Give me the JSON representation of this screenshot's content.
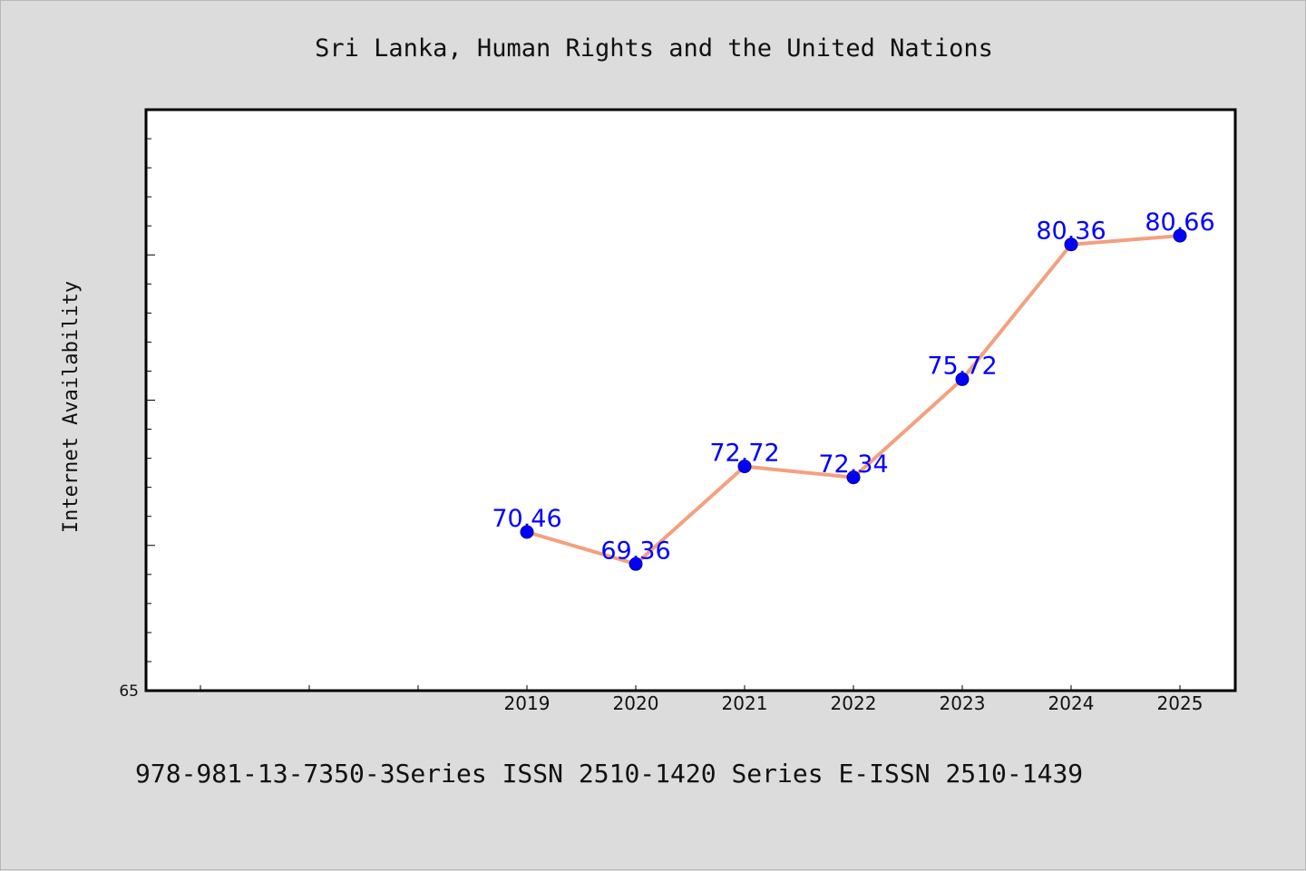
{
  "chart_data": {
    "type": "line",
    "title": "Sri Lanka, Human Rights and the United Nations",
    "ylabel": "Internet Availability",
    "xlabel": "",
    "x_tick_labels": [
      "2019",
      "2020",
      "2021",
      "2022",
      "2023",
      "2024",
      "2025"
    ],
    "y_tick_labels": [
      "65"
    ],
    "ylim": [
      65,
      85
    ],
    "grid": false,
    "series": [
      {
        "x": [
          2019,
          2020,
          2021,
          2022,
          2023,
          2024,
          2025
        ],
        "values": [
          70.46,
          69.36,
          72.72,
          72.34,
          75.72,
          80.36,
          80.66
        ],
        "data_labels": [
          "70.46",
          "69.36",
          "72.72",
          "72.34",
          "75.72",
          "80.36",
          "80.66"
        ]
      }
    ]
  },
  "footer": {
    "text": "978-981-13-7350-3Series ISSN 2510-1420 Series E-ISSN 2510-1439"
  },
  "colors": {
    "background": "#dcdcdc",
    "plot_background": "#ffffff",
    "line": "#f4a07e",
    "marker": "#0000ff",
    "data_label": "#0000ff"
  }
}
